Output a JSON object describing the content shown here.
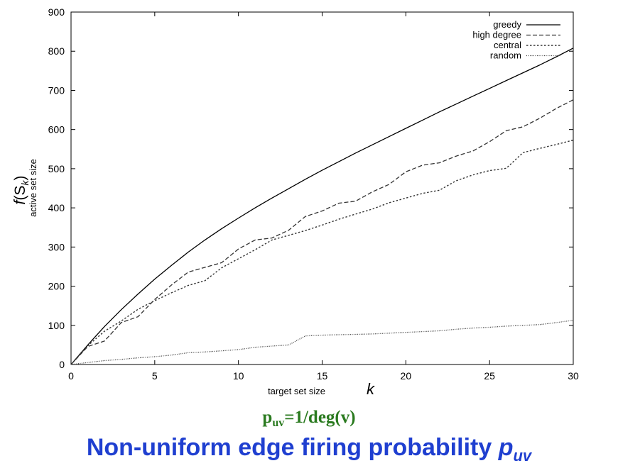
{
  "chart_data": {
    "type": "line",
    "xlim": [
      0,
      30
    ],
    "ylim": [
      0,
      900
    ],
    "x_ticks": [
      0,
      5,
      10,
      15,
      20,
      25,
      30
    ],
    "y_ticks": [
      0,
      100,
      200,
      300,
      400,
      500,
      600,
      700,
      800,
      900
    ],
    "xlabel": "target set size",
    "xlabel_var": "k",
    "ylabel_small": "active set size",
    "ylabel_func": "f",
    "ylabel_arg": "S",
    "ylabel_sub": "k",
    "legend_position": "top-right",
    "grid": false,
    "series": [
      {
        "name": "greedy",
        "style": "solid",
        "x": [
          0,
          1,
          2,
          3,
          4,
          5,
          6,
          7,
          8,
          9,
          10,
          11,
          12,
          13,
          14,
          15,
          16,
          17,
          18,
          19,
          20,
          21,
          22,
          23,
          24,
          25,
          26,
          27,
          28,
          29,
          30
        ],
        "y": [
          0,
          50,
          97,
          140,
          180,
          218,
          253,
          287,
          318,
          347,
          374,
          400,
          425,
          449,
          473,
          496,
          518,
          540,
          561,
          582,
          603,
          624,
          645,
          665,
          685,
          705,
          725,
          745,
          765,
          786,
          808
        ]
      },
      {
        "name": "high degree",
        "style": "dashed",
        "x": [
          0,
          1,
          2,
          3,
          4,
          5,
          6,
          7,
          8,
          9,
          10,
          11,
          12,
          13,
          14,
          15,
          16,
          17,
          18,
          19,
          20,
          21,
          22,
          23,
          24,
          25,
          26,
          27,
          28,
          29,
          30
        ],
        "y": [
          0,
          46,
          60,
          107,
          122,
          166,
          203,
          236,
          248,
          260,
          295,
          318,
          323,
          343,
          378,
          392,
          412,
          417,
          441,
          460,
          492,
          509,
          515,
          532,
          545,
          569,
          597,
          607,
          629,
          654,
          676
        ]
      },
      {
        "name": "central",
        "style": "dotted",
        "x": [
          0,
          1,
          2,
          3,
          4,
          5,
          6,
          7,
          8,
          9,
          10,
          11,
          12,
          13,
          14,
          15,
          16,
          17,
          18,
          19,
          20,
          21,
          22,
          23,
          24,
          25,
          26,
          27,
          28,
          29,
          30
        ],
        "y": [
          0,
          48,
          85,
          111,
          141,
          163,
          183,
          202,
          214,
          247,
          270,
          293,
          318,
          330,
          342,
          356,
          371,
          384,
          397,
          413,
          425,
          437,
          445,
          469,
          484,
          495,
          501,
          541,
          552,
          562,
          573
        ]
      },
      {
        "name": "random",
        "style": "fine-dotted",
        "x": [
          0,
          1,
          2,
          3,
          4,
          5,
          6,
          7,
          8,
          9,
          10,
          11,
          12,
          13,
          14,
          15,
          16,
          17,
          18,
          19,
          20,
          21,
          22,
          23,
          24,
          25,
          26,
          27,
          28,
          29,
          30
        ],
        "y": [
          0,
          5,
          10,
          13,
          17,
          20,
          24,
          30,
          32,
          35,
          38,
          44,
          47,
          50,
          73,
          75,
          76,
          77,
          78,
          80,
          82,
          84,
          86,
          90,
          93,
          95,
          98,
          100,
          102,
          107,
          113
        ]
      }
    ]
  },
  "formula": {
    "main": "p",
    "sub": "uv",
    "rest": "=1/deg(v)"
  },
  "title": {
    "text": "Non-uniform edge firing probability ",
    "var": "p",
    "var_sub": "uv"
  }
}
